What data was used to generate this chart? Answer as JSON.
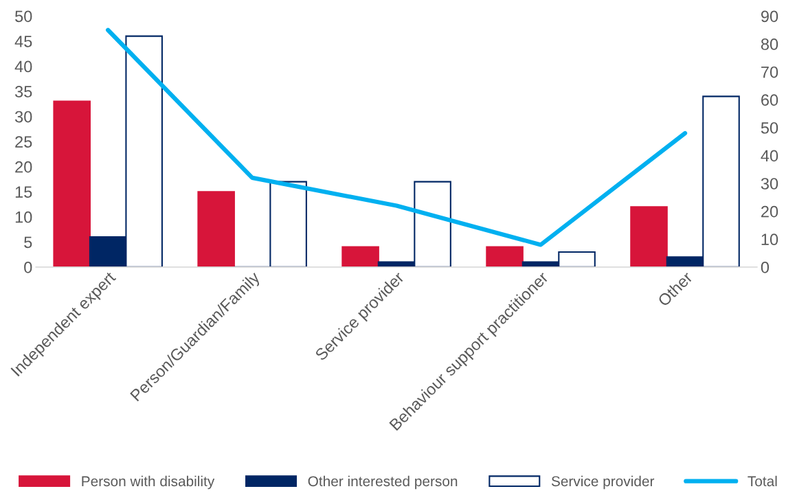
{
  "chart_data": {
    "type": "bar",
    "categories": [
      "Independent expert",
      "Person/Guardian/Family",
      "Service provider",
      "Behaviour support practitioner",
      "Other"
    ],
    "series": [
      {
        "name": "Person with disability",
        "color": "#d7153a",
        "values": [
          33,
          15,
          4,
          4,
          12
        ]
      },
      {
        "name": "Other interested person",
        "color": "#002664",
        "values": [
          6,
          0,
          1,
          1,
          2
        ]
      },
      {
        "name": "Service provider",
        "color": "#ffffff",
        "values": [
          46,
          17,
          17,
          3,
          34
        ]
      },
      {
        "name": "Total",
        "type": "line",
        "axis": "y2",
        "color": "#00b0f0",
        "values": [
          85,
          32,
          22,
          8,
          48
        ]
      }
    ],
    "ylim": [
      0,
      50
    ],
    "yticks": [
      0,
      5,
      10,
      15,
      20,
      25,
      30,
      35,
      40,
      45,
      50
    ],
    "y2lim": [
      0,
      90
    ],
    "y2ticks": [
      0,
      10,
      20,
      30,
      40,
      50,
      60,
      70,
      80,
      90
    ],
    "grid": false,
    "legend": "bottom",
    "marker": "none",
    "line_style": "solid"
  }
}
